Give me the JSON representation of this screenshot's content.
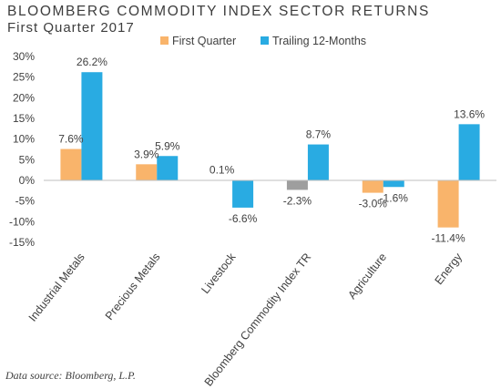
{
  "title": "BLOOMBERG COMMODITY INDEX SECTOR RETURNS",
  "subtitle": "First Quarter 2017",
  "source": "Data source: Bloomberg, L.P.",
  "chart_data": {
    "type": "bar",
    "categories": [
      "Industrial Metals",
      "Precious Metals",
      "Livestock",
      "Bloomberg Commodity Index TR",
      "Agriculture",
      "Energy"
    ],
    "series": [
      {
        "name": "First Quarter",
        "color": "#f9b46b",
        "values": [
          7.6,
          3.9,
          0.1,
          -2.3,
          -3.0,
          -11.4
        ],
        "labels": [
          "7.6%",
          "3.9%",
          "0.1%",
          "-2.3%",
          "-3.0%",
          "-11.4%"
        ]
      },
      {
        "name": "Trailing 12-Months",
        "color": "#29abe2",
        "values": [
          26.2,
          5.9,
          -6.6,
          8.7,
          -1.6,
          13.6
        ],
        "labels": [
          "26.2%",
          "5.9%",
          "-6.6%",
          "8.7%",
          "-1.6%",
          "13.6%"
        ]
      }
    ],
    "highlight": {
      "category_index": 3,
      "series_index": 0,
      "color": "#9e9e9e"
    },
    "yticks": [
      30,
      25,
      20,
      15,
      10,
      5,
      0,
      -5,
      -10,
      -15
    ],
    "ytick_labels": [
      "30%",
      "25%",
      "20%",
      "15%",
      "10%",
      "5%",
      "0%",
      "-5%",
      "-10%",
      "-15%"
    ],
    "ylim": [
      -15,
      30
    ],
    "grid": false,
    "legend_position": "top"
  }
}
